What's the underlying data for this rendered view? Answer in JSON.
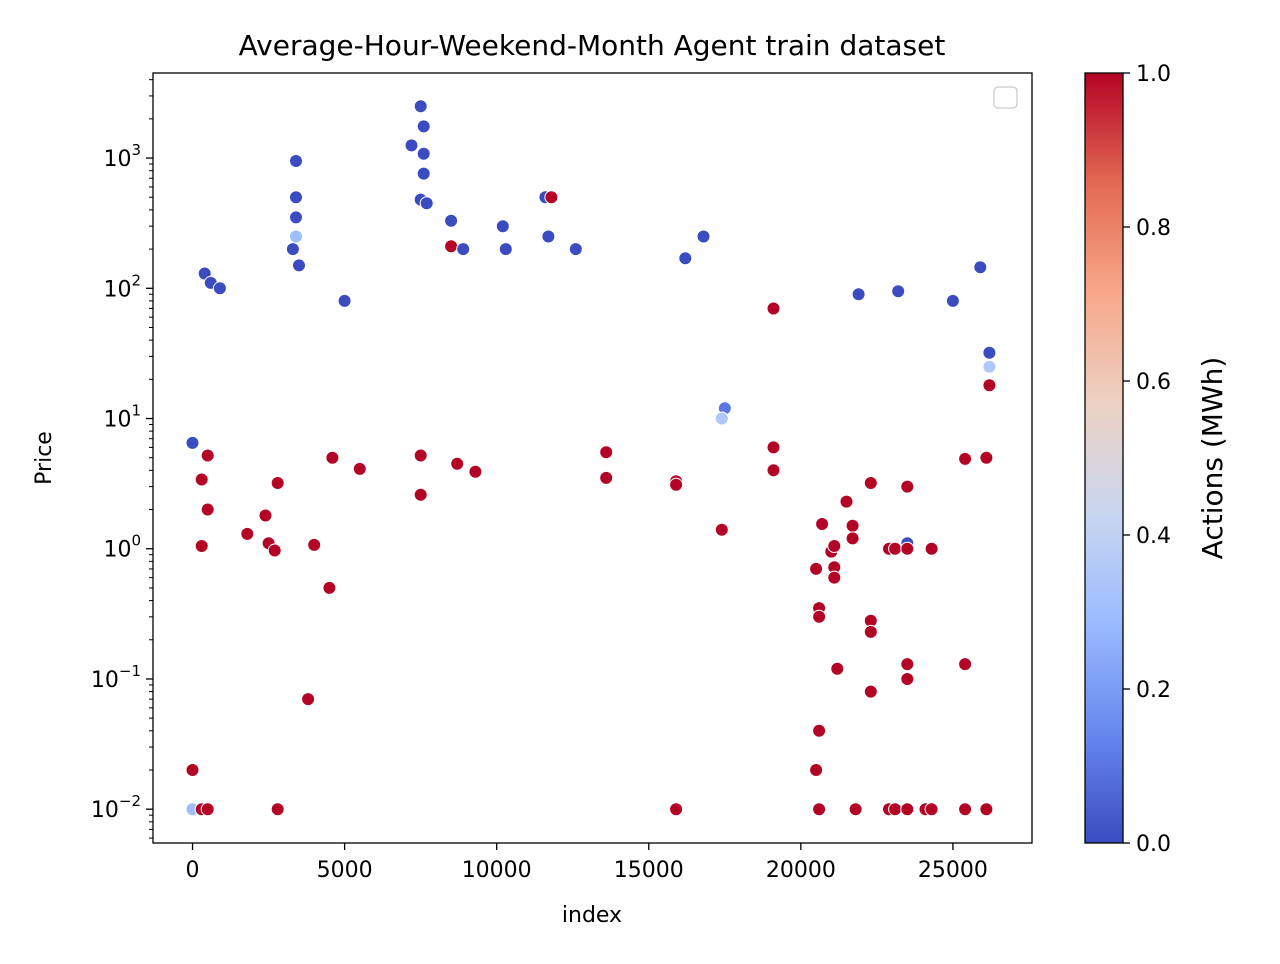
{
  "chart_data": {
    "type": "scatter",
    "title": "Average-Hour-Weekend-Month Agent train dataset",
    "xlabel": "index",
    "ylabel": "Price",
    "xlim": [
      -1300,
      27600
    ],
    "ylim": [
      0.0055,
      4500
    ],
    "yscale": "log",
    "x_ticks": [
      0,
      5000,
      10000,
      15000,
      20000,
      25000
    ],
    "x_tick_labels": [
      "0",
      "5000",
      "10000",
      "15000",
      "20000",
      "25000"
    ],
    "y_ticks": [
      0.01,
      0.1,
      1,
      10,
      100,
      1000
    ],
    "y_tick_labels": [
      {
        "base": "10",
        "exp": "−2"
      },
      {
        "base": "10",
        "exp": "−1"
      },
      {
        "base": "10",
        "exp": "0"
      },
      {
        "base": "10",
        "exp": "1"
      },
      {
        "base": "10",
        "exp": "2"
      },
      {
        "base": "10",
        "exp": "3"
      }
    ],
    "grid": false,
    "legend": "top-right (empty)",
    "colorbar": {
      "label": "Actions (MWh)",
      "colormap": "coolwarm",
      "range": [
        0.0,
        1.0
      ],
      "ticks": [
        "0.0",
        "0.2",
        "0.4",
        "0.6",
        "0.8",
        "1.0"
      ],
      "colors": [
        "#3b4cc0",
        "#6788ee",
        "#9abbff",
        "#c9d7f0",
        "#edd1c2",
        "#f7a889",
        "#e26952",
        "#b40426"
      ]
    },
    "points": [
      [
        0,
        6.5,
        0
      ],
      [
        0,
        0.02,
        1
      ],
      [
        0,
        0.01,
        0.3
      ],
      [
        300,
        3.4,
        1
      ],
      [
        300,
        1.05,
        1
      ],
      [
        500,
        2.0,
        1
      ],
      [
        500,
        5.2,
        1
      ],
      [
        300,
        0.01,
        1
      ],
      [
        500,
        0.01,
        1
      ],
      [
        400,
        130,
        0
      ],
      [
        600,
        110,
        0
      ],
      [
        900,
        100,
        0
      ],
      [
        1800,
        1.3,
        1
      ],
      [
        2400,
        1.8,
        1
      ],
      [
        2500,
        1.1,
        1
      ],
      [
        2700,
        0.97,
        1
      ],
      [
        2800,
        3.2,
        1
      ],
      [
        2800,
        0.01,
        1
      ],
      [
        3300,
        200,
        0
      ],
      [
        3400,
        950,
        0
      ],
      [
        3400,
        500,
        0
      ],
      [
        3400,
        350,
        0
      ],
      [
        3400,
        250,
        0.3
      ],
      [
        3500,
        150,
        0
      ],
      [
        3800,
        0.07,
        1
      ],
      [
        4000,
        1.07,
        1
      ],
      [
        4500,
        0.5,
        1
      ],
      [
        4600,
        5.0,
        1
      ],
      [
        5000,
        80,
        0
      ],
      [
        5500,
        4.1,
        1
      ],
      [
        7200,
        1250,
        0
      ],
      [
        7500,
        2500,
        0
      ],
      [
        7600,
        1750,
        0
      ],
      [
        7600,
        1080,
        0
      ],
      [
        7600,
        760,
        0
      ],
      [
        7500,
        480,
        0
      ],
      [
        7700,
        450,
        0
      ],
      [
        7500,
        2.6,
        1
      ],
      [
        7500,
        5.2,
        1
      ],
      [
        8500,
        210,
        1
      ],
      [
        8500,
        330,
        0
      ],
      [
        8700,
        4.5,
        1
      ],
      [
        8900,
        200,
        0
      ],
      [
        9300,
        3.9,
        1
      ],
      [
        10200,
        300,
        0
      ],
      [
        10300,
        200,
        0
      ],
      [
        11600,
        500,
        0
      ],
      [
        11800,
        500,
        1
      ],
      [
        11700,
        250,
        0
      ],
      [
        12600,
        200,
        0
      ],
      [
        13600,
        3.5,
        1
      ],
      [
        13600,
        5.5,
        1
      ],
      [
        15900,
        3.3,
        1
      ],
      [
        15900,
        3.1,
        1
      ],
      [
        15900,
        0.01,
        1
      ],
      [
        16200,
        170,
        0
      ],
      [
        16800,
        250,
        0
      ],
      [
        17400,
        1.4,
        1
      ],
      [
        17500,
        12,
        0.1
      ],
      [
        17400,
        10,
        0.35
      ],
      [
        19100,
        4.0,
        1
      ],
      [
        19100,
        6.0,
        1
      ],
      [
        19100,
        70,
        1
      ],
      [
        20500,
        0.7,
        1
      ],
      [
        20600,
        0.35,
        1
      ],
      [
        20600,
        0.3,
        1
      ],
      [
        20500,
        0.02,
        1
      ],
      [
        20600,
        0.04,
        1
      ],
      [
        20600,
        0.01,
        1
      ],
      [
        20700,
        1.55,
        1
      ],
      [
        21000,
        0.95,
        1
      ],
      [
        21100,
        1.05,
        1
      ],
      [
        21100,
        0.72,
        1
      ],
      [
        21100,
        0.6,
        1
      ],
      [
        21200,
        0.12,
        1
      ],
      [
        21500,
        2.3,
        1
      ],
      [
        21700,
        1.5,
        1
      ],
      [
        21700,
        1.2,
        1
      ],
      [
        21800,
        0.01,
        1
      ],
      [
        21900,
        90,
        0
      ],
      [
        22300,
        0.28,
        1
      ],
      [
        22300,
        0.23,
        1
      ],
      [
        22300,
        0.08,
        1
      ],
      [
        22300,
        3.2,
        1
      ],
      [
        22900,
        1.0,
        1
      ],
      [
        23100,
        1.0,
        1
      ],
      [
        23200,
        95,
        0
      ],
      [
        23500,
        1.1,
        0
      ],
      [
        23500,
        1.0,
        1
      ],
      [
        23500,
        0.13,
        1
      ],
      [
        23500,
        0.1,
        1
      ],
      [
        23500,
        3.0,
        1
      ],
      [
        22900,
        0.01,
        1
      ],
      [
        23100,
        0.01,
        1
      ],
      [
        23500,
        0.01,
        1
      ],
      [
        24100,
        0.01,
        1
      ],
      [
        24300,
        0.01,
        1
      ],
      [
        24300,
        1.0,
        1
      ],
      [
        25000,
        80,
        0
      ],
      [
        25400,
        4.9,
        1
      ],
      [
        25400,
        0.13,
        1
      ],
      [
        25400,
        0.01,
        1
      ],
      [
        25900,
        145,
        0
      ],
      [
        26100,
        5.0,
        1
      ],
      [
        26100,
        0.01,
        1
      ],
      [
        26200,
        32,
        0
      ],
      [
        26200,
        25,
        0.35
      ],
      [
        26200,
        18,
        1
      ]
    ]
  }
}
